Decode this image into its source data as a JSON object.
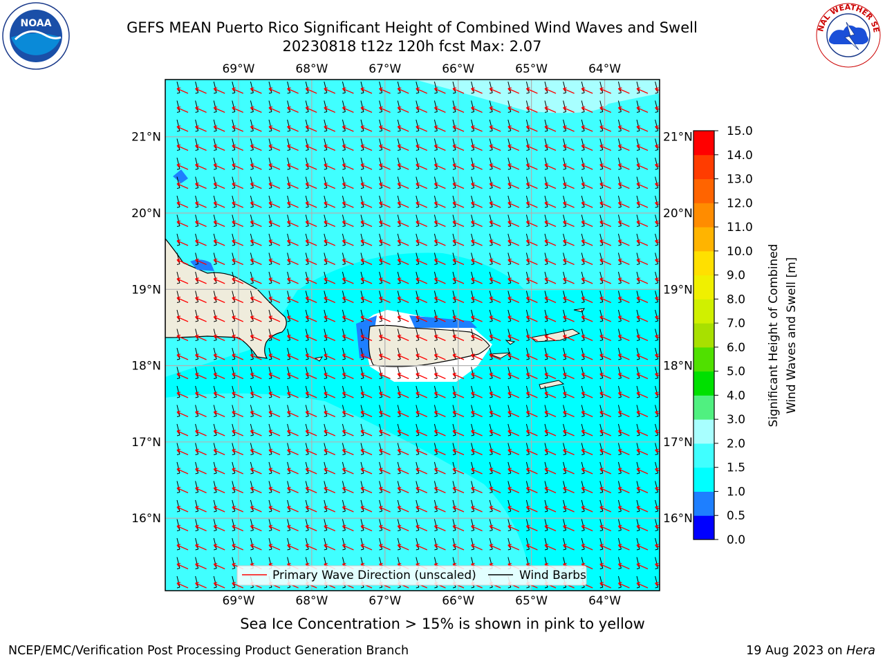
{
  "title": {
    "line1": "GEFS MEAN Puerto Rico Significant Height of Combined Wind Waves and Swell",
    "line2": "20230818 t12z 120h fcst   Max: 2.07"
  },
  "logos": {
    "left": {
      "icon": "noaa-logo",
      "text": "NOAA"
    },
    "right": {
      "icon": "nws-logo",
      "text": "NATIONAL WEATHER SERVICE"
    }
  },
  "map": {
    "lon_labels": [
      "69°W",
      "68°W",
      "67°W",
      "66°W",
      "65°W",
      "64°W"
    ],
    "lat_labels": [
      "21°N",
      "20°N",
      "19°N",
      "18°N",
      "17°N",
      "16°N"
    ],
    "lon_values": [
      -69,
      -68,
      -67,
      -66,
      -65,
      -64
    ],
    "lat_values": [
      21,
      20,
      19,
      18,
      17,
      16
    ],
    "extent": {
      "lon_min": -70,
      "lon_max": -63.25,
      "lat_min": 15.05,
      "lat_max": 21.75
    },
    "colors": {
      "ocean_base": "#40ffff",
      "ocean_mid": "#00ffff",
      "ocean_high": "#a8ffff",
      "coastal": "#1e7fff",
      "land": "#efecdc",
      "wave_arrow": "#ff0000",
      "wind_barb": "#000000"
    }
  },
  "legend": {
    "items": [
      {
        "label": "Primary Wave Direction (unscaled)",
        "color": "#ff0000"
      },
      {
        "label": "Wind Barbs",
        "color": "#000000"
      }
    ]
  },
  "colorbar": {
    "label_line1": "Significant Height of Combined",
    "label_line2": "Wind Waves and Swell [m]",
    "ticks": [
      "0.0",
      "0.5",
      "1.0",
      "1.5",
      "2.0",
      "3.0",
      "4.0",
      "5.0",
      "6.0",
      "7.0",
      "8.0",
      "9.0",
      "10.0",
      "11.0",
      "12.0",
      "13.0",
      "14.0",
      "15.0"
    ],
    "colors": [
      "#0000ff",
      "#1e7fff",
      "#00ffff",
      "#40ffff",
      "#a8ffff",
      "#50f080",
      "#00e000",
      "#50e000",
      "#a8e000",
      "#d0f000",
      "#f0f000",
      "#ffe000",
      "#ffb400",
      "#ff8c00",
      "#ff6400",
      "#ff3c00",
      "#ff0000"
    ]
  },
  "subcaption": "Sea Ice Concentration > 15% is shown in pink to yellow",
  "footer": {
    "left": "NCEP/EMC/Verification Post Processing Product Generation Branch",
    "right_date": "19 Aug 2023 on ",
    "right_host": "Hera"
  }
}
